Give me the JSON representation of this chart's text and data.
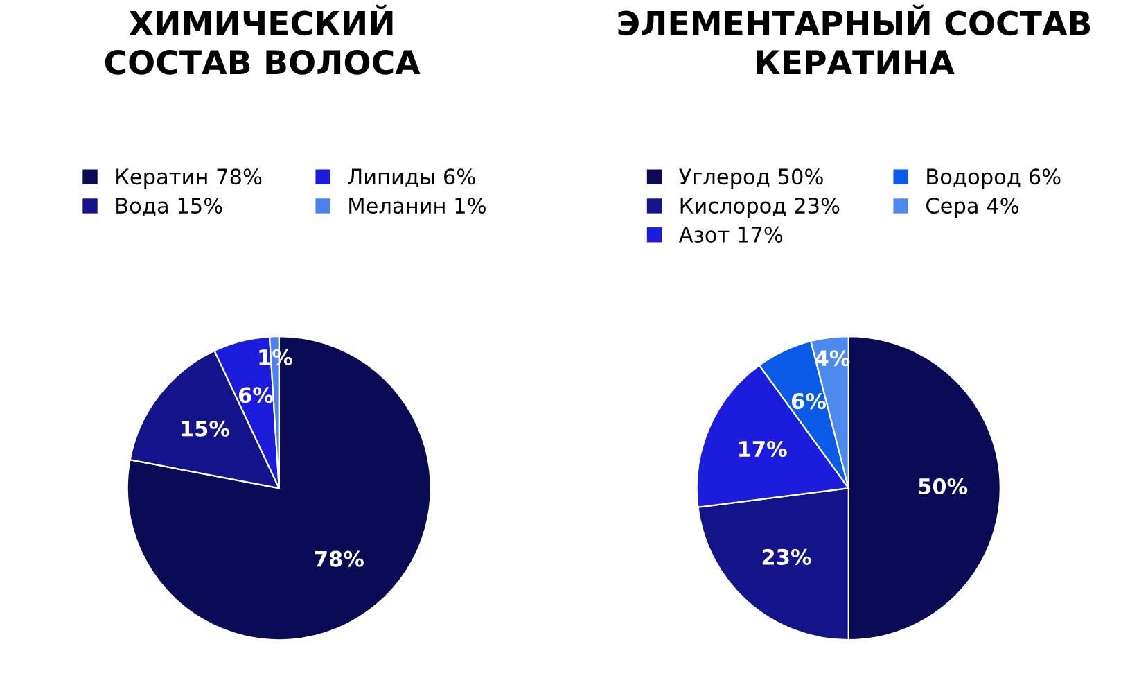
{
  "chart_data": [
    {
      "type": "pie",
      "title": "ХИМИЧЕСКИЙ\nСОСТАВ ВОЛОСА",
      "categories": [
        "Кератин 78%",
        "Вода 15%",
        "Липиды 6%",
        "Меланин 1%"
      ],
      "values": [
        78,
        15,
        6,
        1
      ],
      "colors": [
        "#0b0b55",
        "#13138a",
        "#1c1cdc",
        "#4d82ee"
      ],
      "value_labels": [
        "78%",
        "15%",
        "6%",
        "1%"
      ],
      "legend": "top"
    },
    {
      "type": "pie",
      "title": "ЭЛЕМЕНТАРНЫЙ СОСТАВ\nКЕРАТИНА",
      "categories": [
        "Углерод 50%",
        "Кислород 23%",
        "Азот 17%",
        "Водород 6%",
        "Сера 4%"
      ],
      "values": [
        50,
        23,
        17,
        6,
        4
      ],
      "colors": [
        "#0b0b55",
        "#13138a",
        "#1c1cdc",
        "#0b5ae8",
        "#4d8af0"
      ],
      "value_labels": [
        "50%",
        "23%",
        "17%",
        "6%",
        "4%"
      ],
      "legend": "top"
    }
  ]
}
